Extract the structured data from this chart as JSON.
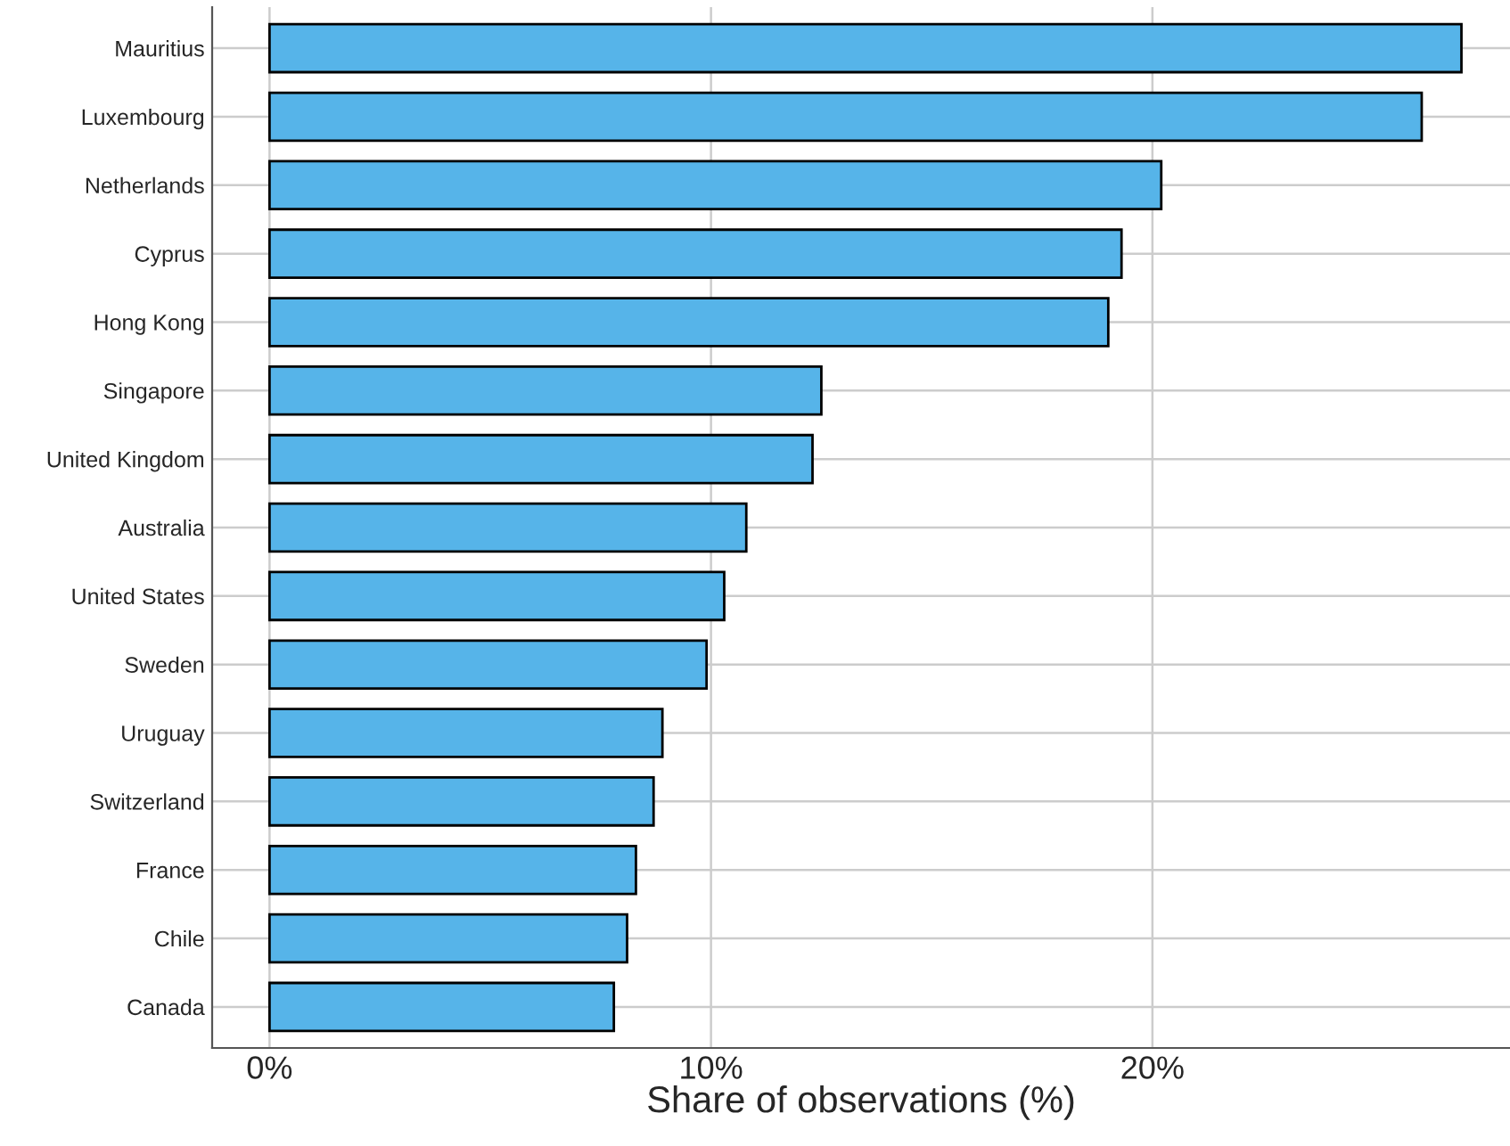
{
  "chart_data": {
    "type": "bar",
    "orientation": "horizontal",
    "xlabel": "Share of observations (%)",
    "categories": [
      "Mauritius",
      "Luxembourg",
      "Netherlands",
      "Cyprus",
      "Hong Kong",
      "Singapore",
      "United Kingdom",
      "Australia",
      "United States",
      "Sweden",
      "Uruguay",
      "Switzerland",
      "France",
      "Chile",
      "Canada"
    ],
    "values": [
      27.0,
      26.1,
      20.2,
      19.3,
      19.0,
      12.5,
      12.3,
      10.8,
      10.3,
      9.9,
      8.9,
      8.7,
      8.3,
      8.1,
      7.8
    ],
    "color": "#56b4e9",
    "xlim": [
      -1.3,
      28.1
    ],
    "xticks": [
      {
        "value": 0,
        "label": "0%"
      },
      {
        "value": 10,
        "label": "10%"
      },
      {
        "value": 20,
        "label": "20%"
      }
    ],
    "grid": true
  }
}
